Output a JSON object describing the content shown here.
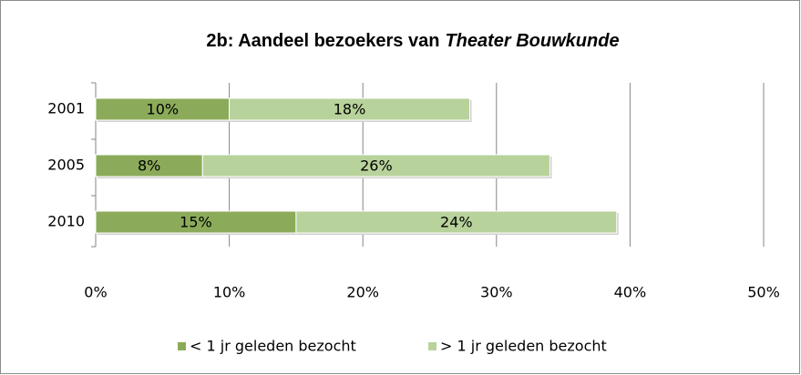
{
  "chart_data": {
    "type": "stacked-barh",
    "title": [
      "2b: Aandeel bezoekers van",
      "Theater Bouwkunde"
    ],
    "categories": [
      "2001",
      "2005",
      "2010"
    ],
    "series": [
      {
        "name": "< 1 jr geleden bezocht",
        "color": "#8cab5a",
        "values": [
          10,
          8,
          15
        ],
        "value_labels": [
          "10%",
          "8%",
          "15%"
        ]
      },
      {
        "name": "> 1 jr geleden bezocht",
        "color": "#b8d29b",
        "values": [
          18,
          26,
          24
        ],
        "value_labels": [
          "18%",
          "26%",
          "24%"
        ]
      }
    ],
    "xlim": [
      0,
      50
    ],
    "xticks": [
      {
        "value": 0,
        "label": "0%"
      },
      {
        "value": 10,
        "label": "10%"
      },
      {
        "value": 20,
        "label": "20%"
      },
      {
        "value": 30,
        "label": "30%"
      },
      {
        "value": 40,
        "label": "40%"
      },
      {
        "value": 50,
        "label": "50%"
      }
    ],
    "grid": true,
    "legend": "bottom"
  }
}
